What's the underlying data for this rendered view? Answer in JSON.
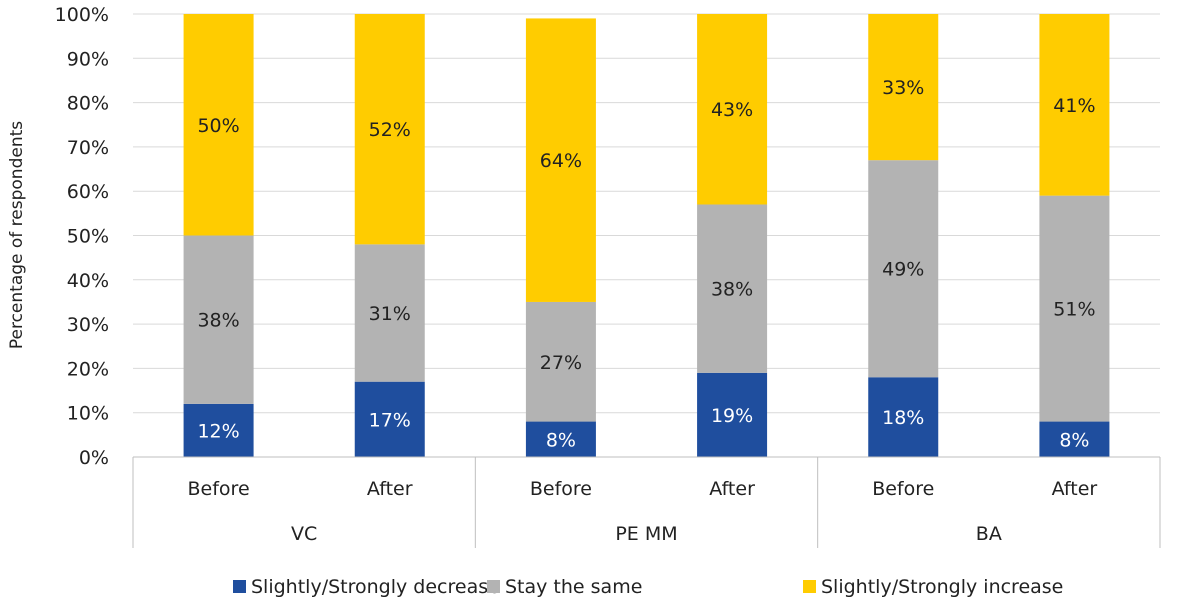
{
  "chart_data": {
    "type": "bar",
    "stacked": true,
    "ylabel": "Percentage of respondents",
    "ylim": [
      0,
      100
    ],
    "yticks": [
      "0%",
      "10%",
      "20%",
      "30%",
      "40%",
      "50%",
      "60%",
      "70%",
      "80%",
      "90%",
      "100%"
    ],
    "grid": true,
    "legend_position": "bottom",
    "groups": [
      {
        "name": "VC",
        "categories": [
          "Before",
          "After"
        ]
      },
      {
        "name": "PE MM",
        "categories": [
          "Before",
          "After"
        ]
      },
      {
        "name": "BA",
        "categories": [
          "Before",
          "After"
        ]
      }
    ],
    "series": [
      {
        "name": "Slightly/Strongly decrease",
        "color": "#1F4E9E",
        "label_color": "#ffffff",
        "values": [
          12,
          17,
          8,
          19,
          18,
          8
        ],
        "labels": [
          "12%",
          "17%",
          "8%",
          "19%",
          "18%",
          "8%"
        ]
      },
      {
        "name": "Stay the same",
        "color": "#B3B3B3",
        "label_color": "#222222",
        "values": [
          38,
          31,
          27,
          38,
          49,
          51
        ],
        "labels": [
          "38%",
          "31%",
          "27%",
          "38%",
          "49%",
          "51%"
        ]
      },
      {
        "name": "Slightly/Strongly increase",
        "color": "#FFCC00",
        "label_color": "#222222",
        "values": [
          50,
          52,
          64,
          43,
          33,
          41
        ],
        "labels": [
          "50%",
          "52%",
          "64%",
          "43%",
          "33%",
          "41%"
        ]
      }
    ]
  }
}
